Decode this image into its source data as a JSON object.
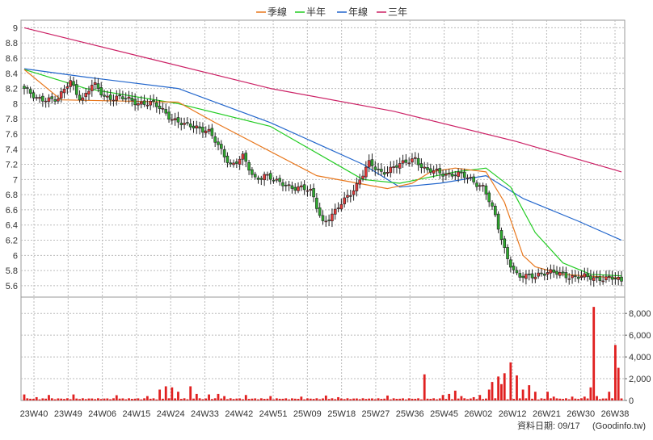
{
  "chart_data": {
    "type": "candlestick",
    "legend": [
      {
        "label": "季線",
        "color": "#e8771c"
      },
      {
        "label": "半年",
        "color": "#22cc22"
      },
      {
        "label": "年線",
        "color": "#2266cc"
      },
      {
        "label": "三年",
        "color": "#cc2266"
      }
    ],
    "legend_position": "top-center",
    "grid": true,
    "price_axis": {
      "min": 5.45,
      "max": 9.1,
      "ticks": [
        "9",
        "8.8",
        "8.6",
        "8.4",
        "8.2",
        "8",
        "7.8",
        "7.6",
        "7.4",
        "7.2",
        "7",
        "6.8",
        "6.6",
        "6.4",
        "6.2",
        "6",
        "5.8",
        "5.6"
      ]
    },
    "volume_axis": {
      "min": 0,
      "max": 9500,
      "ticks": [
        "0",
        "2,000",
        "4,000",
        "6,000",
        "8,000"
      ]
    },
    "x_ticks": [
      "23W40",
      "23W49",
      "24W06",
      "24W15",
      "24W24",
      "24W33",
      "24W42",
      "24W51",
      "25W09",
      "25W18",
      "25W27",
      "25W36",
      "25W45",
      "26W02",
      "26W12",
      "26W21",
      "26W30",
      "26W38"
    ],
    "price_keypoints": [
      8.2,
      8.05,
      8.08,
      8.05,
      8.3,
      8.05,
      8.25,
      8.1,
      8.08,
      8.05,
      8.02,
      8.0,
      7.92,
      7.8,
      7.7,
      7.7,
      7.65,
      7.4,
      7.2,
      7.3,
      7.0,
      7.08,
      6.95,
      6.92,
      6.9,
      6.82,
      6.45,
      6.55,
      6.75,
      6.95,
      7.2,
      7.1,
      7.15,
      7.2,
      7.3,
      7.1,
      7.1,
      7.08,
      7.05,
      7.0,
      6.9,
      6.5,
      6.0,
      5.7,
      5.72,
      5.78,
      5.76,
      5.75,
      5.72,
      5.7,
      5.71,
      5.7,
      5.65
    ],
    "ma_quarter": [
      [
        0,
        8.45
      ],
      [
        12,
        8.05
      ],
      [
        50,
        8.02
      ],
      [
        62,
        7.75
      ],
      [
        95,
        7.05
      ],
      [
        118,
        6.88
      ],
      [
        126,
        6.95
      ],
      [
        132,
        7.1
      ],
      [
        140,
        7.15
      ],
      [
        150,
        7.1
      ],
      [
        156,
        6.7
      ],
      [
        162,
        6.0
      ],
      [
        166,
        5.85
      ],
      [
        175,
        5.75
      ],
      [
        194,
        5.7
      ]
    ],
    "ma_half": [
      [
        0,
        8.45
      ],
      [
        20,
        8.2
      ],
      [
        50,
        8.0
      ],
      [
        80,
        7.7
      ],
      [
        110,
        7.0
      ],
      [
        122,
        6.95
      ],
      [
        128,
        7.0
      ],
      [
        140,
        7.1
      ],
      [
        150,
        7.15
      ],
      [
        158,
        6.9
      ],
      [
        166,
        6.3
      ],
      [
        175,
        5.9
      ],
      [
        184,
        5.75
      ],
      [
        194,
        5.73
      ]
    ],
    "ma_year": [
      [
        0,
        8.46
      ],
      [
        20,
        8.35
      ],
      [
        50,
        8.2
      ],
      [
        80,
        7.75
      ],
      [
        110,
        7.2
      ],
      [
        122,
        6.9
      ],
      [
        135,
        6.95
      ],
      [
        150,
        7.05
      ],
      [
        162,
        6.75
      ],
      [
        180,
        6.45
      ],
      [
        194,
        6.2
      ]
    ],
    "ma_3year": [
      [
        0,
        9.0
      ],
      [
        40,
        8.6
      ],
      [
        80,
        8.2
      ],
      [
        120,
        7.9
      ],
      [
        160,
        7.5
      ],
      [
        194,
        7.1
      ]
    ],
    "volume_spikes": [
      [
        0,
        550
      ],
      [
        4,
        300
      ],
      [
        8,
        500
      ],
      [
        16,
        550
      ],
      [
        30,
        480
      ],
      [
        40,
        400
      ],
      [
        44,
        1000
      ],
      [
        46,
        1300
      ],
      [
        48,
        1200
      ],
      [
        50,
        800
      ],
      [
        54,
        1300
      ],
      [
        56,
        600
      ],
      [
        60,
        550
      ],
      [
        63,
        600
      ],
      [
        65,
        400
      ],
      [
        72,
        500
      ],
      [
        80,
        400
      ],
      [
        90,
        350
      ],
      [
        98,
        450
      ],
      [
        102,
        300
      ],
      [
        118,
        450
      ],
      [
        130,
        2400
      ],
      [
        136,
        500
      ],
      [
        138,
        600
      ],
      [
        140,
        900
      ],
      [
        142,
        400
      ],
      [
        146,
        300
      ],
      [
        148,
        500
      ],
      [
        151,
        1000
      ],
      [
        152,
        1700
      ],
      [
        154,
        2200
      ],
      [
        155,
        1500
      ],
      [
        156,
        2500
      ],
      [
        158,
        3500
      ],
      [
        160,
        2300
      ],
      [
        162,
        1000
      ],
      [
        164,
        1400
      ],
      [
        166,
        800
      ],
      [
        170,
        800
      ],
      [
        172,
        350
      ],
      [
        178,
        350
      ],
      [
        182,
        350
      ],
      [
        184,
        1200
      ],
      [
        185,
        8600
      ],
      [
        186,
        400
      ],
      [
        190,
        800
      ],
      [
        192,
        5100
      ],
      [
        193,
        3000
      ]
    ],
    "footer_label": "資料日期: 09/17",
    "source_label": "(Goodinfo.tw)"
  }
}
